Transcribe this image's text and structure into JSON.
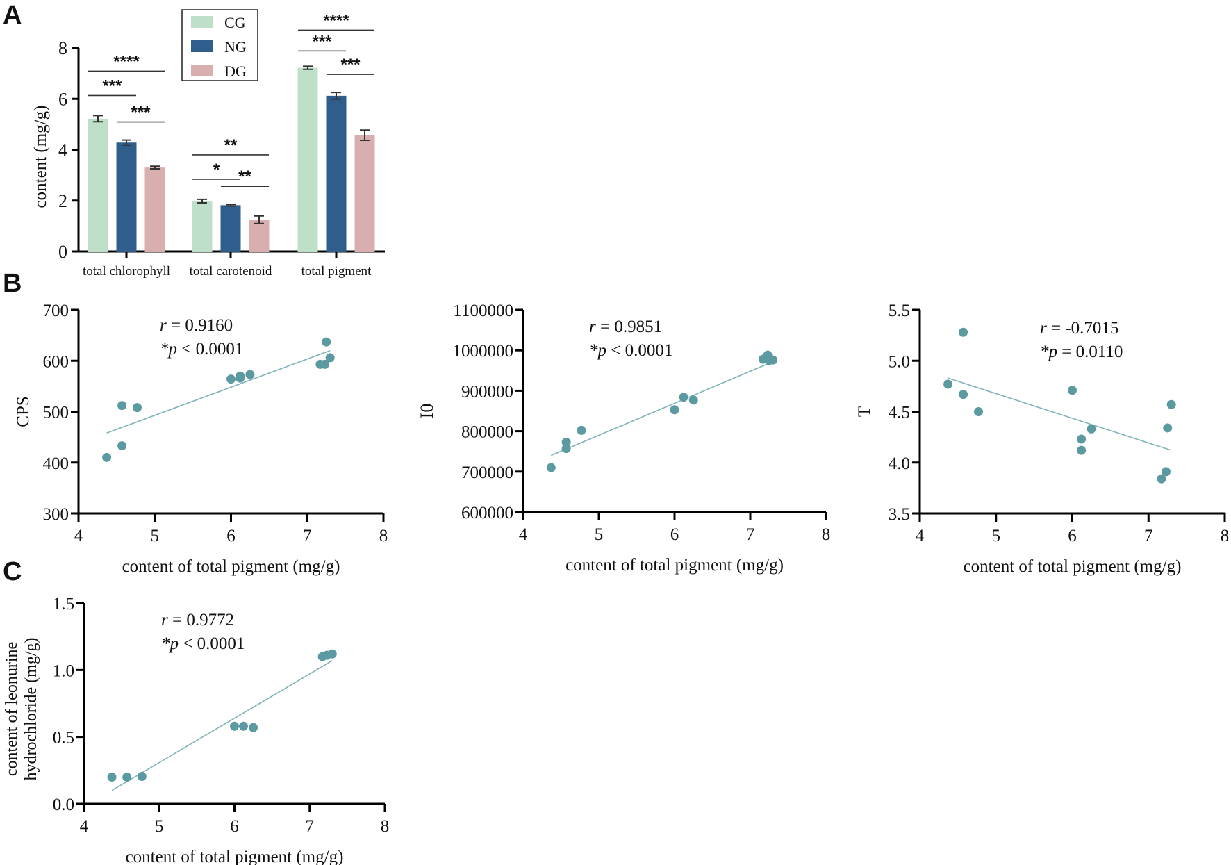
{
  "colors": {
    "CG": "#bfe0c8",
    "NG": "#2f5d8c",
    "DG": "#d8aeae",
    "point": "#5b9aa0",
    "line": "#7fb3b8"
  },
  "chart_data": [
    {
      "panel": "A",
      "type": "bar",
      "categories": [
        "total chlorophyll",
        "total carotenoid",
        "total pigment"
      ],
      "series": [
        {
          "name": "CG",
          "values": [
            5.22,
            1.98,
            7.22
          ],
          "errors": [
            0.12,
            0.07,
            0.06
          ]
        },
        {
          "name": "NG",
          "values": [
            4.28,
            1.82,
            6.12
          ],
          "errors": [
            0.1,
            0.03,
            0.13
          ]
        },
        {
          "name": "DG",
          "values": [
            3.3,
            1.25,
            4.57
          ],
          "errors": [
            0.05,
            0.15,
            0.2
          ]
        }
      ],
      "ylabel": "content (mg/g)",
      "ylim": [
        0,
        8
      ],
      "yticks": [
        "0",
        "2",
        "4",
        "6",
        "8"
      ],
      "significance": [
        {
          "category": 0,
          "pairs": [
            [
              "CG",
              "DG",
              "****"
            ],
            [
              "CG",
              "NG",
              "***"
            ],
            [
              "NG",
              "DG",
              "***"
            ]
          ]
        },
        {
          "category": 1,
          "pairs": [
            [
              "CG",
              "DG",
              "**"
            ],
            [
              "CG",
              "NG",
              "*"
            ],
            [
              "NG",
              "DG",
              "**"
            ]
          ]
        },
        {
          "category": 2,
          "pairs": [
            [
              "CG",
              "DG",
              "****"
            ],
            [
              "CG",
              "NG",
              "***"
            ],
            [
              "NG",
              "DG",
              "***"
            ]
          ]
        }
      ],
      "legend": [
        "CG",
        "NG",
        "DG"
      ]
    },
    {
      "panel": "B",
      "type": "scatter",
      "xlabel": "content of total pigment (mg/g)",
      "ylabel": "CPS",
      "xlim": [
        4,
        8
      ],
      "ylim": [
        300,
        700
      ],
      "xticks": [
        "4",
        "5",
        "6",
        "7",
        "8"
      ],
      "yticks": [
        "300",
        "400",
        "500",
        "600",
        "700"
      ],
      "r": "= 0.9160",
      "p": "< 0.0001",
      "x": [
        4.37,
        4.57,
        4.57,
        4.77,
        6.0,
        6.12,
        6.12,
        6.25,
        7.17,
        7.23,
        7.25,
        7.3
      ],
      "y": [
        410,
        512,
        433,
        508,
        564,
        570,
        566,
        573,
        593,
        593,
        637,
        606
      ],
      "fit": [
        [
          4.37,
          458
        ],
        [
          7.3,
          620
        ]
      ]
    },
    {
      "type": "scatter",
      "xlabel": "content of total pigment (mg/g)",
      "ylabel": "I0",
      "xlim": [
        4,
        8
      ],
      "ylim": [
        600000,
        1100000
      ],
      "xticks": [
        "4",
        "5",
        "6",
        "7",
        "8"
      ],
      "yticks": [
        "600000",
        "700000",
        "800000",
        "900000",
        "1000000",
        "1100000"
      ],
      "r": "= 0.9851",
      "p": "< 0.0001",
      "x": [
        4.37,
        4.57,
        4.57,
        4.77,
        6.0,
        6.12,
        6.25,
        7.17,
        7.23,
        7.25,
        7.3
      ],
      "y": [
        710000,
        773000,
        757000,
        802000,
        853000,
        884000,
        877000,
        978000,
        988000,
        975000,
        976000
      ],
      "fit": [
        [
          4.37,
          740000
        ],
        [
          7.3,
          972000
        ]
      ]
    },
    {
      "type": "scatter",
      "xlabel": "content of total pigment (mg/g)",
      "ylabel": "T",
      "xlim": [
        4,
        8
      ],
      "ylim": [
        3.5,
        5.5
      ],
      "xticks": [
        "4",
        "5",
        "6",
        "7",
        "8"
      ],
      "yticks": [
        "3.5",
        "4.0",
        "4.5",
        "5.0",
        "5.5"
      ],
      "r": "= -0.7015",
      "p": "= 0.0110",
      "x": [
        4.37,
        4.57,
        4.57,
        4.77,
        6.0,
        6.12,
        6.12,
        6.25,
        7.17,
        7.23,
        7.25,
        7.3
      ],
      "y": [
        4.77,
        5.28,
        4.67,
        4.5,
        4.71,
        4.23,
        4.12,
        4.33,
        3.84,
        3.91,
        4.34,
        4.57
      ],
      "fit": [
        [
          4.37,
          4.83
        ],
        [
          7.3,
          4.12
        ]
      ]
    },
    {
      "panel": "C",
      "type": "scatter",
      "xlabel": "content of total pigment (mg/g)",
      "ylabel": "content of leonurine hydrochloride (mg/g)",
      "ylabel_lines": [
        "content of leonurine",
        "hydrochloride (mg/g)"
      ],
      "xlim": [
        4,
        8
      ],
      "ylim": [
        0,
        1.5
      ],
      "xticks": [
        "4",
        "5",
        "6",
        "7",
        "8"
      ],
      "yticks": [
        "0.0",
        "0.5",
        "1.0",
        "1.5"
      ],
      "r": "= 0.9772",
      "p": "< 0.0001",
      "x": [
        4.37,
        4.57,
        4.77,
        6.0,
        6.12,
        6.25,
        7.17,
        7.23,
        7.3
      ],
      "y": [
        0.2,
        0.2,
        0.205,
        0.58,
        0.58,
        0.57,
        1.1,
        1.11,
        1.12
      ],
      "fit": [
        [
          4.37,
          0.1
        ],
        [
          7.3,
          1.07
        ]
      ]
    }
  ]
}
